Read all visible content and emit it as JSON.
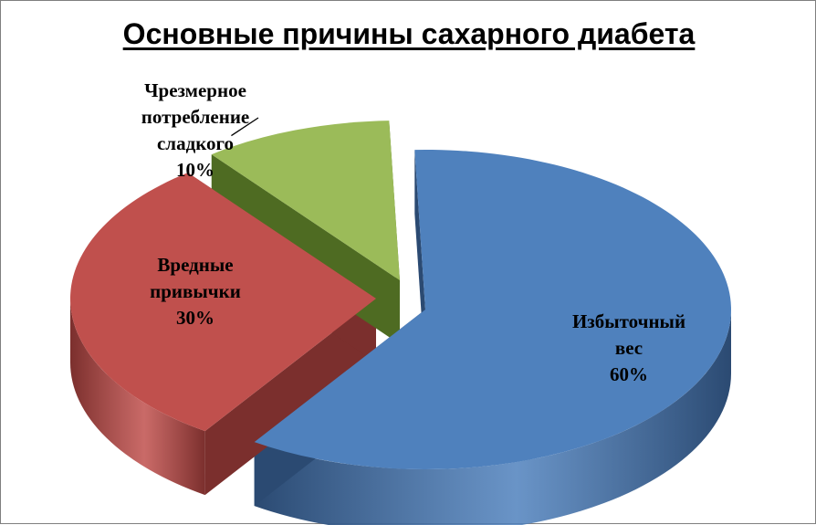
{
  "chart_data": {
    "type": "pie",
    "title": "Основные причины сахарного диабета",
    "slices": [
      {
        "label_lines": [
          "Избыточный",
          "вес"
        ],
        "percent_label": "60%",
        "value": 60,
        "color": "#4F81BD",
        "side_color": "#2B4A72"
      },
      {
        "label_lines": [
          "Вредные",
          "привычки"
        ],
        "percent_label": "30%",
        "value": 30,
        "color": "#C0504D",
        "side_color": "#7B2F2D"
      },
      {
        "label_lines": [
          "Чрезмерное",
          "потребление",
          "сладкого"
        ],
        "percent_label": "10%",
        "value": 10,
        "color": "#9BBB59",
        "side_color": "#4E6B22"
      }
    ],
    "legend": "none",
    "style": "3d-exploded"
  }
}
